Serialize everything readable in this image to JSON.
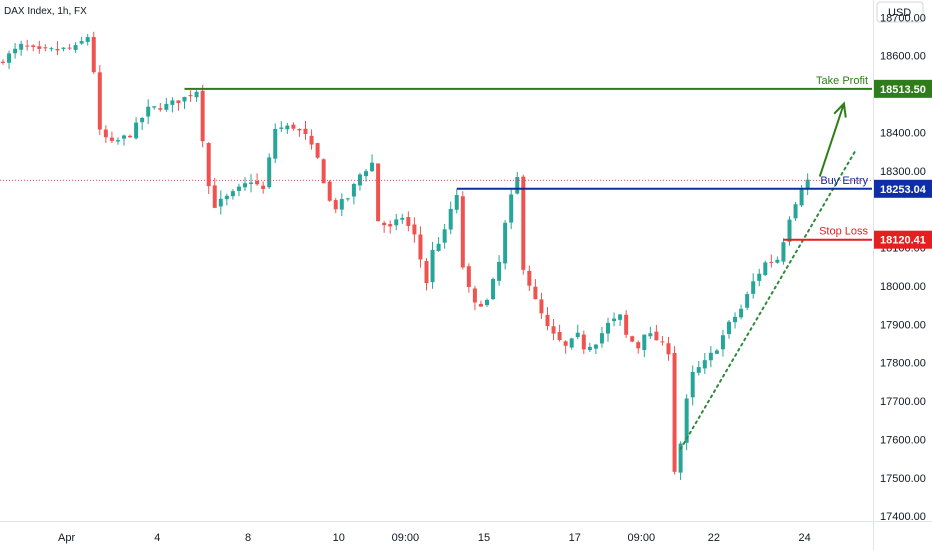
{
  "header": {
    "title": "DAX Index, 1h, FX"
  },
  "currency_button": {
    "label": "USD"
  },
  "colors": {
    "up": "#26a69a",
    "down": "#ef5350",
    "take_profit": "#2e7d1a",
    "buy_entry": "#0d2ea8",
    "stop_loss": "#e31f1f",
    "trend": "#2e8b3a",
    "last_price": "#ef5350"
  },
  "chart_data": {
    "type": "candlestick",
    "title": "DAX Index, 1h, FX",
    "xlabel": "",
    "ylabel": "",
    "ylim": [
      17390,
      18745
    ],
    "y_ticks": [
      {
        "value": 18700,
        "label": "18700.00"
      },
      {
        "value": 18600,
        "label": "18600.00"
      },
      {
        "value": 18400,
        "label": "18400.00"
      },
      {
        "value": 18300,
        "label": "18300.00"
      },
      {
        "value": 18100,
        "label": "18100.00"
      },
      {
        "value": 18000,
        "label": "18000.00"
      },
      {
        "value": 17900,
        "label": "17900.00"
      },
      {
        "value": 17800,
        "label": "17800.00"
      },
      {
        "value": 17700,
        "label": "17700.00"
      },
      {
        "value": 17600,
        "label": "17600.00"
      },
      {
        "value": 17500,
        "label": "17500.00"
      },
      {
        "value": 17400,
        "label": "17400.00"
      }
    ],
    "x_ticks": [
      {
        "index": 11,
        "label": "Apr"
      },
      {
        "index": 26,
        "label": "4"
      },
      {
        "index": 41,
        "label": "8"
      },
      {
        "index": 56,
        "label": "10"
      },
      {
        "index": 67,
        "label": "09:00"
      },
      {
        "index": 80,
        "label": "15"
      },
      {
        "index": 95,
        "label": "17"
      },
      {
        "index": 106,
        "label": "09:00"
      },
      {
        "index": 118,
        "label": "22"
      },
      {
        "index": 133,
        "label": "24"
      }
    ],
    "candle_count": 140,
    "anchors": [
      [
        0,
        18590
      ],
      [
        3,
        18625
      ],
      [
        6,
        18610
      ],
      [
        9,
        18615
      ],
      [
        12,
        18620
      ],
      [
        14,
        18650
      ],
      [
        15,
        18560
      ],
      [
        16,
        18400
      ],
      [
        18,
        18370
      ],
      [
        21,
        18395
      ],
      [
        24,
        18460
      ],
      [
        27,
        18470
      ],
      [
        30,
        18490
      ],
      [
        32,
        18510
      ],
      [
        34,
        18260
      ],
      [
        35,
        18210
      ],
      [
        38,
        18240
      ],
      [
        41,
        18275
      ],
      [
        43,
        18250
      ],
      [
        45,
        18410
      ],
      [
        48,
        18415
      ],
      [
        50,
        18390
      ],
      [
        52,
        18330
      ],
      [
        54,
        18220
      ],
      [
        55,
        18205
      ],
      [
        57,
        18230
      ],
      [
        59,
        18290
      ],
      [
        61,
        18320
      ],
      [
        62,
        18170
      ],
      [
        64,
        18150
      ],
      [
        66,
        18180
      ],
      [
        68,
        18130
      ],
      [
        69,
        18070
      ],
      [
        70,
        18010
      ],
      [
        71,
        18090
      ],
      [
        73,
        18140
      ],
      [
        74,
        18200
      ],
      [
        75,
        18230
      ],
      [
        76,
        18050
      ],
      [
        77,
        17990
      ],
      [
        78,
        17950
      ],
      [
        80,
        17960
      ],
      [
        82,
        18060
      ],
      [
        83,
        18160
      ],
      [
        84,
        18230
      ],
      [
        85,
        18280
      ],
      [
        86,
        18050
      ],
      [
        88,
        17960
      ],
      [
        90,
        17890
      ],
      [
        91,
        17870
      ],
      [
        93,
        17840
      ],
      [
        95,
        17870
      ],
      [
        96,
        17840
      ],
      [
        98,
        17855
      ],
      [
        100,
        17900
      ],
      [
        102,
        17920
      ],
      [
        103,
        17870
      ],
      [
        105,
        17840
      ],
      [
        106,
        17880
      ],
      [
        108,
        17860
      ],
      [
        110,
        17830
      ],
      [
        111,
        17520
      ],
      [
        112,
        17590
      ],
      [
        113,
        17700
      ],
      [
        114,
        17770
      ],
      [
        116,
        17800
      ],
      [
        118,
        17840
      ],
      [
        120,
        17900
      ],
      [
        122,
        17940
      ],
      [
        124,
        18010
      ],
      [
        126,
        18060
      ],
      [
        128,
        18070
      ],
      [
        129,
        18120
      ],
      [
        130,
        18180
      ],
      [
        131,
        18220
      ],
      [
        132,
        18260
      ],
      [
        133,
        18275
      ]
    ],
    "levels": [
      {
        "name": "take-profit",
        "label": "Take Profit",
        "value": 18513.5,
        "price_label": "18513.50",
        "start_index": 30
      },
      {
        "name": "buy-entry",
        "label": "Buy Entry",
        "value": 18253.04,
        "price_label": "18253.04",
        "start_index": 75
      },
      {
        "name": "stop-loss",
        "label": "Stop Loss",
        "value": 18120.41,
        "price_label": "18120.41",
        "start_index": 129
      }
    ],
    "last_price": 18275,
    "trendline": {
      "from": [
        112,
        17575
      ],
      "to": [
        141,
        18355
      ]
    },
    "arrow": {
      "from": [
        135,
        18285
      ],
      "to": [
        139,
        18475
      ]
    }
  }
}
